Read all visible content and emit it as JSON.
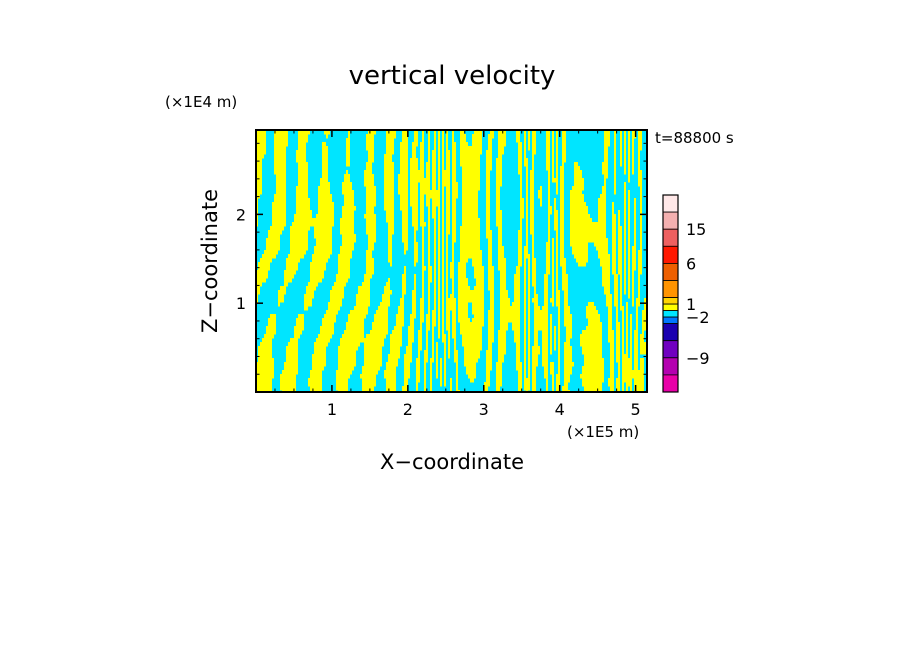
{
  "chart_data": {
    "type": "heatmap",
    "title": "vertical velocity",
    "xlabel": "X−coordinate",
    "ylabel": "Z−coordinate",
    "x_unit": "(×1E5 m)",
    "y_unit": "(×1E4 m)",
    "time_label": "t=88800 s",
    "xlim": [
      0,
      5.15
    ],
    "ylim": [
      0,
      2.95
    ],
    "x_ticks": [
      1,
      2,
      3,
      4,
      5
    ],
    "y_ticks": [
      1,
      2
    ],
    "field_colors": {
      "positive": "#ffff00",
      "negative": "#00e5ff"
    },
    "colorbar": {
      "levels": [
        {
          "color": "#ffe8e8"
        },
        {
          "color": "#f4b0b0"
        },
        {
          "color": "#ee6060"
        },
        {
          "color": "#ff1800"
        },
        {
          "color": "#ee5f00"
        },
        {
          "color": "#ff9400"
        },
        {
          "color": "#ffd400"
        },
        {
          "color": "#ffff00"
        },
        {
          "color": "#00e5ff"
        },
        {
          "color": "#0078ff"
        },
        {
          "color": "#1a00b0"
        },
        {
          "color": "#7000c0"
        },
        {
          "color": "#b400b0"
        },
        {
          "color": "#e800a8"
        }
      ],
      "tick_labels": [
        {
          "level_boundary": 2,
          "text": "15"
        },
        {
          "level_boundary": 4,
          "text": "6"
        },
        {
          "level_boundary": 7,
          "text": "1"
        },
        {
          "level_boundary": 9,
          "text": "−2"
        },
        {
          "level_boundary": 12,
          "text": "−9"
        }
      ]
    }
  }
}
